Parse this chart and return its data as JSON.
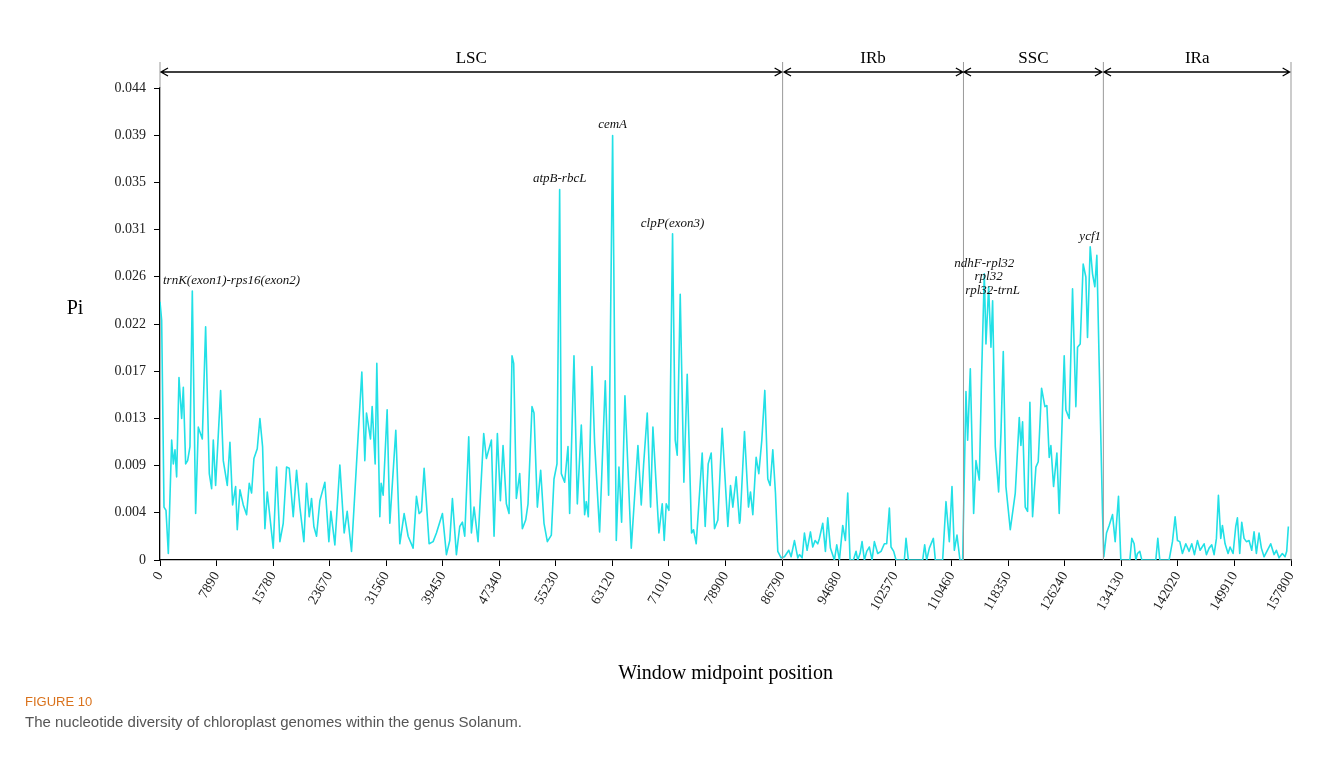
{
  "chart_data": {
    "type": "line",
    "xlabel": "Window midpoint position",
    "ylabel": "Pi",
    "xlim": [
      0,
      157800
    ],
    "xticks": [
      0,
      7890,
      15780,
      23670,
      31560,
      39450,
      47340,
      55230,
      63120,
      71010,
      78900,
      86790,
      94680,
      102570,
      110460,
      118350,
      126240,
      134130,
      142020,
      149910,
      157800
    ],
    "ylim": [
      0,
      0.0437
    ],
    "yticks": [
      0,
      {
        "value": 0.00437,
        "label": "0.004"
      },
      {
        "value": 0.00874,
        "label": "0.009"
      },
      {
        "value": 0.01311,
        "label": "0.013"
      },
      {
        "value": 0.01748,
        "label": "0.017"
      },
      {
        "value": 0.02185,
        "label": "0.022"
      },
      {
        "value": 0.02622,
        "label": "0.026"
      },
      {
        "value": 0.03059,
        "label": "0.031"
      },
      {
        "value": 0.03496,
        "label": "0.035"
      },
      {
        "value": 0.03933,
        "label": "0.039"
      },
      {
        "value": 0.0437,
        "label": "0.044"
      }
    ],
    "grid": false,
    "legend": false,
    "series": [
      {
        "color": "#22e0e6",
        "x": [
          0,
          232,
          558,
          836,
          1162,
          1626,
          1859,
          2091,
          2324,
          2649,
          3021,
          3253,
          3578,
          3857,
          4182,
          4508,
          4972,
          5344,
          5902,
          6366,
          6878,
          7203,
          7435,
          7760,
          8458,
          8829,
          9387,
          9759,
          10130,
          10549,
          10781,
          11153,
          11618,
          12082,
          12454,
          12779,
          13105,
          13569,
          13941,
          14313,
          14638,
          14963,
          15800,
          16264,
          16729,
          17194,
          17659,
          18030,
          18588,
          19053,
          19517,
          20075,
          20447,
          20819,
          21144,
          21469,
          21841,
          22306,
          23003,
          23560,
          23839,
          24397,
          25094,
          25698,
          26116,
          26720,
          27417,
          28161,
          28579,
          28811,
          29369,
          29601,
          30020,
          30252,
          30670,
          30856,
          31135,
          31692,
          32064,
          32900,
          33458,
          34062,
          34620,
          35317,
          35782,
          36154,
          36479,
          36851,
          37548,
          38105,
          38570,
          39406,
          39964,
          40429,
          40798,
          41356,
          41820,
          42192,
          42517,
          43075,
          43447,
          43818,
          44376,
          44701,
          45166,
          45538,
          46235,
          46607,
          47071,
          47490,
          47861,
          48326,
          48698,
          49116,
          49348,
          49720,
          50185,
          50557,
          51021,
          51347,
          51904,
          52183,
          52648,
          53112,
          53577,
          54042,
          54599,
          54971,
          55389,
          55761,
          55994,
          56458,
          56923,
          57155,
          57759,
          58224,
          58782,
          59246,
          59479,
          59758,
          60269,
          60641,
          61338,
          62128,
          62592,
          63150,
          63661,
          64033,
          64404,
          64869,
          65752,
          66681,
          67146,
          67471,
          67982,
          68447,
          68772,
          69608,
          70073,
          70351,
          70630,
          71002,
          71513,
          71885,
          72164,
          72582,
          73093,
          73558,
          74162,
          74441,
          74813,
          75649,
          76067,
          76485,
          76904,
          77368,
          77833,
          78436,
          79226,
          79598,
          79923,
          80388,
          80852,
          80945,
          81549,
          82107,
          82386,
          82711,
          83176,
          83547,
          83966,
          84384,
          84802,
          85127,
          85499,
          85871,
          86196,
          86661,
          87126,
          87730,
          88055,
          88520,
          88984,
          89217,
          89588,
          89914,
          90285,
          90750,
          91075,
          91401,
          91773,
          92005,
          92470,
          92841,
          93167,
          93538,
          94096,
          94421,
          94793,
          95258,
          95630,
          95955,
          96280,
          96745,
          97117,
          97349,
          97674,
          97953,
          98279,
          98604,
          98975,
          99347,
          99672,
          100137,
          100602,
          101066,
          101391,
          101763,
          101996,
          102367,
          102693,
          103855,
          104087,
          104412,
          106411,
          106689,
          106968,
          107340,
          107898,
          108177,
          109199,
          109664,
          110128,
          110500,
          110825,
          111197,
          111615,
          111987,
          112452,
          112684,
          113056,
          113521,
          113846,
          114311,
          114636,
          115008,
          115240,
          115612,
          115937,
          116169,
          116541,
          117006,
          117331,
          117656,
          118028,
          118632,
          119329,
          119887,
          120116,
          120349,
          120720,
          121046,
          121371,
          121743,
          122208,
          122533,
          122998,
          123462,
          123741,
          124066,
          124299,
          124671,
          125135,
          125461,
          126158,
          126390,
          126855,
          127319,
          127784,
          128016,
          128388,
          128806,
          129178,
          129410,
          129782,
          130108,
          130433,
          130712,
          131037,
          131502,
          131688,
          132060,
          132431,
          132896,
          133268,
          133732,
          134057,
          135312,
          135591,
          135916,
          136149,
          136381,
          136706,
          136985,
          138937,
          139216,
          139494,
          140795,
          141260,
          141632,
          141957,
          142283,
          142654,
          143119,
          143584,
          143955,
          144327,
          144745,
          145117,
          145675,
          146000,
          146372,
          146744,
          147069,
          147394,
          147673,
          147998,
          148231,
          148603,
          149021,
          149300,
          149718,
          150090,
          150322,
          150647,
          150926,
          151252,
          151577,
          151949,
          152320,
          152646,
          152971,
          153343,
          153668,
          154040,
          154505,
          154969,
          155434,
          155759,
          156131,
          156596,
          156967,
          157200,
          157433
        ],
        "values": [
          0.0239,
          0.0222,
          0.0049,
          0.0046,
          0.0006,
          0.0111,
          0.0089,
          0.0102,
          0.0077,
          0.0169,
          0.0131,
          0.016,
          0.0089,
          0.0092,
          0.0105,
          0.0249,
          0.0043,
          0.0123,
          0.0112,
          0.0216,
          0.008,
          0.0066,
          0.0111,
          0.0069,
          0.0157,
          0.0092,
          0.0069,
          0.0109,
          0.0051,
          0.0068,
          0.0028,
          0.0065,
          0.0051,
          0.0042,
          0.0071,
          0.0062,
          0.0094,
          0.0103,
          0.0131,
          0.0105,
          0.0029,
          0.0063,
          0.0011,
          0.0086,
          0.0017,
          0.0034,
          0.0086,
          0.0085,
          0.004,
          0.0083,
          0.0049,
          0.0017,
          0.0071,
          0.004,
          0.0057,
          0.0031,
          0.0022,
          0.0055,
          0.0072,
          0.0017,
          0.0045,
          0.0014,
          0.0088,
          0.0025,
          0.0045,
          0.0008,
          0.0089,
          0.0174,
          0.0092,
          0.0136,
          0.0112,
          0.0142,
          0.0089,
          0.0182,
          0.004,
          0.0071,
          0.006,
          0.0139,
          0.0034,
          0.012,
          0.0015,
          0.0043,
          0.0022,
          0.0011,
          0.0059,
          0.0043,
          0.0045,
          0.0085,
          0.0015,
          0.0017,
          0.0025,
          0.0043,
          0.0005,
          0.0018,
          0.0057,
          0.0005,
          0.0031,
          0.0035,
          0.0022,
          0.0114,
          0.0025,
          0.0049,
          0.0017,
          0.0059,
          0.0117,
          0.0094,
          0.0111,
          0.0022,
          0.0117,
          0.0055,
          0.0106,
          0.0052,
          0.0043,
          0.0189,
          0.0182,
          0.0057,
          0.008,
          0.0029,
          0.0037,
          0.0052,
          0.0142,
          0.0136,
          0.0049,
          0.0083,
          0.0034,
          0.0017,
          0.0023,
          0.0075,
          0.0089,
          0.0343,
          0.008,
          0.0072,
          0.0105,
          0.0043,
          0.0189,
          0.0052,
          0.0125,
          0.0042,
          0.0054,
          0.004,
          0.0179,
          0.0108,
          0.0026,
          0.0166,
          0.006,
          0.0393,
          0.0018,
          0.0086,
          0.0035,
          0.0152,
          0.0011,
          0.0106,
          0.0051,
          0.0088,
          0.0136,
          0.0049,
          0.0123,
          0.0025,
          0.0052,
          0.0018,
          0.0052,
          0.0046,
          0.0302,
          0.0111,
          0.0097,
          0.0246,
          0.0072,
          0.0172,
          0.0025,
          0.0028,
          0.0015,
          0.0099,
          0.0031,
          0.0089,
          0.0099,
          0.0029,
          0.0037,
          0.0122,
          0.0031,
          0.0069,
          0.0049,
          0.0077,
          0.0034,
          0.0037,
          0.0119,
          0.0049,
          0.0063,
          0.0042,
          0.0095,
          0.008,
          0.0111,
          0.0157,
          0.0075,
          0.0069,
          0.0102,
          0.0062,
          0.0008,
          0.0002,
          0.0003,
          0.0009,
          0.0003,
          0.0018,
          0.0002,
          0.0005,
          0.0002,
          0.0025,
          0.0009,
          0.0026,
          0.0012,
          0.0018,
          0.0015,
          0.002,
          0.0034,
          0.0008,
          0.0039,
          0.0011,
          0,
          0.0014,
          0,
          0.0032,
          0.0018,
          0.0062,
          0,
          0,
          0.0008,
          0,
          0.0006,
          0.0017,
          0,
          0.0008,
          0.0012,
          0,
          0.0017,
          0.0006,
          0.0008,
          0.0015,
          0.0015,
          0.0048,
          0.0012,
          0.0008,
          0,
          0,
          0.002,
          0,
          0,
          0.0014,
          0,
          0.0011,
          0.002,
          0,
          0,
          0.0054,
          0.0017,
          0.0068,
          0.0009,
          0.0023,
          0,
          0,
          0.0156,
          0.0111,
          0.0177,
          0.0043,
          0.0092,
          0.0074,
          0.0172,
          0.0265,
          0.02,
          0.0253,
          0.0197,
          0.024,
          0.0105,
          0.0063,
          0.0117,
          0.0193,
          0.0068,
          0.0028,
          0.0062,
          0.0132,
          0.0106,
          0.0128,
          0.0049,
          0.0045,
          0.0146,
          0.004,
          0.0086,
          0.0091,
          0.0159,
          0.0142,
          0.0143,
          0.0095,
          0.0106,
          0.0068,
          0.0099,
          0.0043,
          0.0189,
          0.0139,
          0.0131,
          0.0251,
          0.0142,
          0.0197,
          0.02,
          0.0274,
          0.0262,
          0.0206,
          0.029,
          0.0265,
          0.0253,
          0.0282,
          0.0182,
          0.0043,
          0.0003,
          0.0025,
          0.0032,
          0.0042,
          0.0017,
          0.0059,
          0,
          0,
          0.002,
          0.0015,
          0,
          0.0006,
          0.0008,
          0,
          0,
          0.002,
          0,
          0,
          0.0017,
          0.004,
          0.0018,
          0.0017,
          0.0006,
          0.0015,
          0.0008,
          0.0015,
          0.0005,
          0.0018,
          0.0009,
          0.0015,
          0.0005,
          0.0011,
          0.0014,
          0.0005,
          0.002,
          0.006,
          0.002,
          0.0032,
          0.0015,
          0.0006,
          0.0012,
          0.0006,
          0.0031,
          0.0039,
          0.0006,
          0.0035,
          0.002,
          0.0017,
          0.0018,
          0.0009,
          0.0026,
          0.0006,
          0.0025,
          0.0011,
          0.0003,
          0.0009,
          0.0015,
          0.0005,
          0.0009,
          0.0002,
          0.0006,
          0.0003,
          0.0008,
          0.0031
        ]
      }
    ],
    "ref_lines": [
      {
        "axis": "x",
        "value": 86870,
        "color": "#999999"
      },
      {
        "axis": "x",
        "value": 112100,
        "color": "#999999"
      },
      {
        "axis": "x",
        "value": 131620,
        "color": "#999999"
      }
    ],
    "annotations": [
      {
        "text": "trnK(exon1)-rps16(exon2)",
        "x": 4508,
        "y": 0.0249
      },
      {
        "text": "atpB-rbcL",
        "x": 55761,
        "y": 0.0343
      },
      {
        "text": "cemA",
        "x": 63150,
        "y": 0.0393
      },
      {
        "text": "clpP(exon3)",
        "x": 71513,
        "y": 0.0302
      },
      {
        "text": "ndhF-rpl32",
        "x": 115008,
        "y": 0.0265
      },
      {
        "text": "rpl32",
        "x": 115612,
        "y": 0.0253
      },
      {
        "text": "rpl32-trnL",
        "x": 116169,
        "y": 0.024
      },
      {
        "text": "ycf1",
        "x": 129782,
        "y": 0.029
      },
      "LSC",
      "IRb",
      "SSC",
      "IRa",
      "FIGURE 10",
      "The nucleotide diversity of chloroplast genomes within the genus Solanum."
    ]
  }
}
